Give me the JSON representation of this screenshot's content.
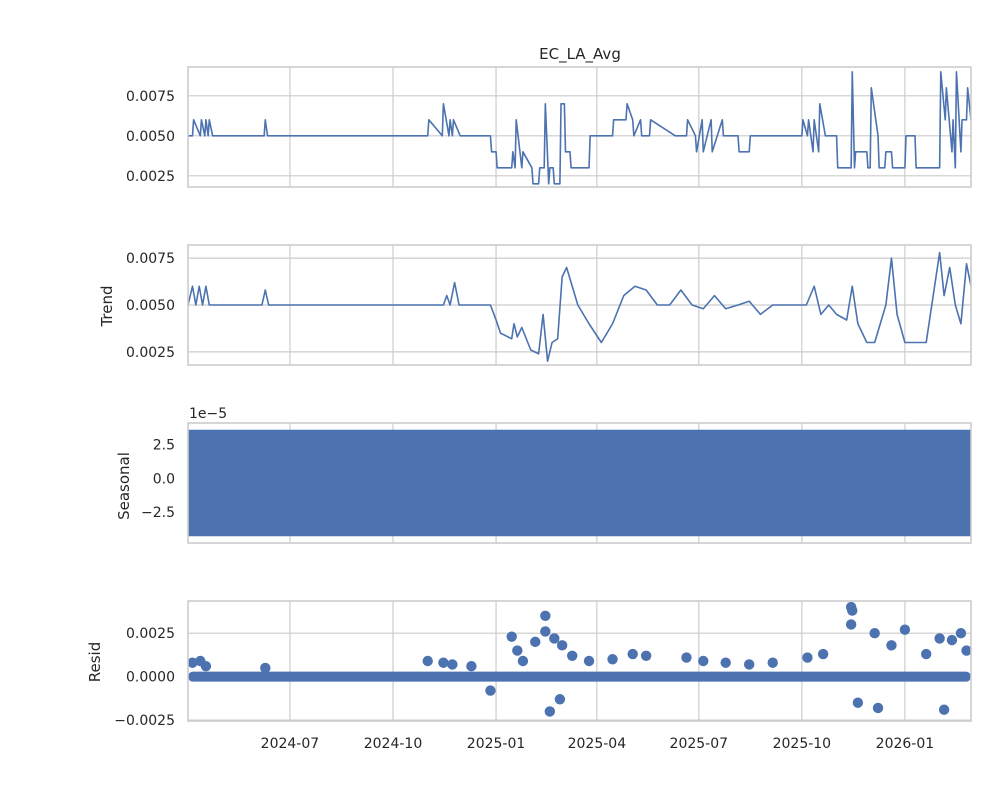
{
  "chart_data": [
    {
      "type": "line",
      "panel": "observed",
      "title": "EC_LA_Avg",
      "ylabel": "",
      "ylim": [
        0.0018,
        0.0093
      ],
      "yticks": [
        0.0025,
        0.005,
        0.0075
      ],
      "ytick_labels": [
        "0.0025",
        "0.0050",
        "0.0075"
      ],
      "xlim": [
        "2024-04-01",
        "2026-03-01"
      ],
      "grid": true,
      "color": "#4c72b0",
      "series": [
        {
          "x": [
            "2024-04-01",
            "2024-04-05",
            "2024-04-06",
            "2024-04-12",
            "2024-04-13",
            "2024-04-16",
            "2024-04-17",
            "2024-04-19",
            "2024-04-20",
            "2024-04-23",
            "2024-04-24",
            "2024-06-08",
            "2024-06-09",
            "2024-06-11",
            "2024-06-12",
            "2024-11-01",
            "2024-11-02",
            "2024-11-14",
            "2024-11-15",
            "2024-11-20",
            "2024-11-21",
            "2024-11-23",
            "2024-11-24",
            "2024-11-30",
            "2024-12-01",
            "2024-12-27",
            "2024-12-28",
            "2025-01-01",
            "2025-01-02",
            "2025-01-15",
            "2025-01-16",
            "2025-01-18",
            "2025-01-19",
            "2025-01-24",
            "2025-01-25",
            "2025-02-02",
            "2025-02-03",
            "2025-02-08",
            "2025-02-09",
            "2025-02-13",
            "2025-02-14",
            "2025-02-17",
            "2025-02-18",
            "2025-02-21",
            "2025-02-22",
            "2025-02-27",
            "2025-02-28",
            "2025-03-03",
            "2025-03-04",
            "2025-03-08",
            "2025-03-09",
            "2025-03-13",
            "2025-03-14",
            "2025-03-25",
            "2025-03-26",
            "2025-04-15",
            "2025-04-16",
            "2025-04-27",
            "2025-04-28",
            "2025-05-03",
            "2025-05-04",
            "2025-05-10",
            "2025-05-11",
            "2025-05-18",
            "2025-05-19",
            "2025-06-10",
            "2025-06-11",
            "2025-06-20",
            "2025-06-21",
            "2025-06-28",
            "2025-06-29",
            "2025-07-04",
            "2025-07-05",
            "2025-07-12",
            "2025-07-13",
            "2025-07-22",
            "2025-07-23",
            "2025-08-05",
            "2025-08-06",
            "2025-08-15",
            "2025-08-16",
            "2025-08-23",
            "2025-08-24",
            "2025-09-01",
            "2025-09-02",
            "2025-10-01",
            "2025-10-02",
            "2025-10-06",
            "2025-10-07",
            "2025-10-11",
            "2025-10-12",
            "2025-10-16",
            "2025-10-17",
            "2025-10-22",
            "2025-10-23",
            "2025-11-01",
            "2025-11-02",
            "2025-11-14",
            "2025-11-15",
            "2025-11-17",
            "2025-11-18",
            "2025-11-28",
            "2025-11-29",
            "2025-12-01",
            "2025-12-02",
            "2025-12-08",
            "2025-12-09",
            "2025-12-14",
            "2025-12-15",
            "2025-12-20",
            "2025-12-21",
            "2026-01-01",
            "2026-01-02",
            "2026-01-10",
            "2026-01-11",
            "2026-01-20",
            "2026-01-21",
            "2026-02-01",
            "2026-02-02",
            "2026-02-06",
            "2026-02-07",
            "2026-02-12",
            "2026-02-13",
            "2026-02-15",
            "2026-02-16",
            "2026-02-20",
            "2026-02-21",
            "2026-02-25",
            "2026-02-26",
            "2026-03-01"
          ],
          "y": [
            0.005,
            0.005,
            0.006,
            0.005,
            0.006,
            0.005,
            0.006,
            0.005,
            0.006,
            0.005,
            0.005,
            0.005,
            0.006,
            0.005,
            0.005,
            0.005,
            0.006,
            0.005,
            0.007,
            0.005,
            0.006,
            0.005,
            0.006,
            0.005,
            0.005,
            0.005,
            0.004,
            0.004,
            0.003,
            0.003,
            0.004,
            0.003,
            0.006,
            0.003,
            0.004,
            0.003,
            0.002,
            0.002,
            0.003,
            0.003,
            0.007,
            0.002,
            0.003,
            0.003,
            0.002,
            0.002,
            0.007,
            0.007,
            0.004,
            0.004,
            0.003,
            0.003,
            0.003,
            0.003,
            0.005,
            0.005,
            0.006,
            0.006,
            0.007,
            0.006,
            0.005,
            0.006,
            0.005,
            0.005,
            0.006,
            0.005,
            0.005,
            0.005,
            0.006,
            0.005,
            0.004,
            0.006,
            0.004,
            0.006,
            0.004,
            0.006,
            0.005,
            0.005,
            0.004,
            0.004,
            0.005,
            0.005,
            0.005,
            0.005,
            0.005,
            0.005,
            0.006,
            0.005,
            0.006,
            0.004,
            0.006,
            0.004,
            0.007,
            0.005,
            0.005,
            0.005,
            0.003,
            0.003,
            0.009,
            0.003,
            0.004,
            0.004,
            0.003,
            0.003,
            0.008,
            0.005,
            0.003,
            0.003,
            0.004,
            0.004,
            0.003,
            0.003,
            0.005,
            0.005,
            0.003,
            0.003,
            0.003,
            0.003,
            0.009,
            0.006,
            0.008,
            0.004,
            0.006,
            0.003,
            0.009,
            0.004,
            0.006,
            0.006,
            0.008,
            0.006
          ]
        }
      ]
    },
    {
      "type": "line",
      "panel": "trend",
      "title": "",
      "ylabel": "Trend",
      "ylim": [
        0.0018,
        0.0082
      ],
      "yticks": [
        0.0025,
        0.005,
        0.0075
      ],
      "ytick_labels": [
        "0.0025",
        "0.0050",
        "0.0075"
      ],
      "xlim": [
        "2024-04-01",
        "2026-03-01"
      ],
      "grid": true,
      "color": "#4c72b0",
      "series": [
        {
          "x": [
            "2024-04-01",
            "2024-04-05",
            "2024-04-08",
            "2024-04-11",
            "2024-04-14",
            "2024-04-17",
            "2024-04-20",
            "2024-04-24",
            "2024-06-06",
            "2024-06-09",
            "2024-06-12",
            "2024-11-01",
            "2024-11-15",
            "2024-11-18",
            "2024-11-21",
            "2024-11-25",
            "2024-11-29",
            "2024-12-27",
            "2025-01-01",
            "2025-01-05",
            "2025-01-15",
            "2025-01-17",
            "2025-01-20",
            "2025-01-24",
            "2025-02-01",
            "2025-02-08",
            "2025-02-12",
            "2025-02-16",
            "2025-02-20",
            "2025-02-25",
            "2025-03-01",
            "2025-03-05",
            "2025-03-10",
            "2025-03-15",
            "2025-03-25",
            "2025-04-05",
            "2025-04-15",
            "2025-04-25",
            "2025-05-05",
            "2025-05-15",
            "2025-05-25",
            "2025-06-05",
            "2025-06-15",
            "2025-06-25",
            "2025-07-05",
            "2025-07-15",
            "2025-07-25",
            "2025-08-05",
            "2025-08-15",
            "2025-08-25",
            "2025-09-05",
            "2025-09-20",
            "2025-10-05",
            "2025-10-12",
            "2025-10-18",
            "2025-10-25",
            "2025-11-01",
            "2025-11-10",
            "2025-11-15",
            "2025-11-20",
            "2025-11-28",
            "2025-12-05",
            "2025-12-15",
            "2025-12-20",
            "2025-12-25",
            "2026-01-01",
            "2026-01-10",
            "2026-01-20",
            "2026-02-01",
            "2026-02-05",
            "2026-02-10",
            "2026-02-15",
            "2026-02-20",
            "2026-02-25",
            "2026-03-01"
          ],
          "y": [
            0.005,
            0.006,
            0.005,
            0.006,
            0.005,
            0.006,
            0.005,
            0.005,
            0.005,
            0.0058,
            0.005,
            0.005,
            0.005,
            0.0055,
            0.005,
            0.0062,
            0.005,
            0.005,
            0.0042,
            0.0035,
            0.0032,
            0.004,
            0.0033,
            0.0038,
            0.0026,
            0.0024,
            0.0045,
            0.002,
            0.003,
            0.0032,
            0.0065,
            0.007,
            0.006,
            0.005,
            0.004,
            0.003,
            0.004,
            0.0055,
            0.006,
            0.0058,
            0.005,
            0.005,
            0.0058,
            0.005,
            0.0048,
            0.0055,
            0.0048,
            0.005,
            0.0052,
            0.0045,
            0.005,
            0.005,
            0.005,
            0.006,
            0.0045,
            0.005,
            0.0045,
            0.0042,
            0.006,
            0.004,
            0.003,
            0.003,
            0.005,
            0.0075,
            0.0045,
            0.003,
            0.003,
            0.003,
            0.0078,
            0.0055,
            0.007,
            0.005,
            0.004,
            0.0072,
            0.006
          ]
        }
      ]
    },
    {
      "type": "area",
      "panel": "seasonal",
      "title": "",
      "ylabel": "Seasonal",
      "offset_text": "1e−5",
      "ylim": [
        -4.8,
        4.1
      ],
      "yticks": [
        -2.5,
        0.0,
        2.5
      ],
      "ytick_labels": [
        "−2.5",
        "0.0",
        "2.5"
      ],
      "band": [
        -4.3,
        3.6
      ],
      "xlim": [
        "2024-04-01",
        "2026-03-01"
      ],
      "grid": true,
      "color": "#4c72b0"
    },
    {
      "type": "scatter",
      "panel": "resid",
      "title": "",
      "ylabel": "Resid",
      "ylim": [
        -0.00255,
        0.00435
      ],
      "yticks": [
        -0.0025,
        0.0,
        0.0025
      ],
      "ytick_labels": [
        "−0.0025",
        "0.0000",
        "0.0025"
      ],
      "xlim": [
        "2024-04-01",
        "2026-03-01"
      ],
      "xticks": [
        "2024-07-01",
        "2024-10-01",
        "2025-01-01",
        "2025-04-01",
        "2025-07-01",
        "2025-10-01",
        "2026-01-01"
      ],
      "xtick_labels": [
        "2024-07",
        "2024-10",
        "2025-01",
        "2025-04",
        "2025-07",
        "2025-10",
        "2026-01"
      ],
      "grid": true,
      "color": "#4c72b0",
      "series": [
        {
          "x": [
            "2024-04-05",
            "2024-04-12",
            "2024-04-17",
            "2024-06-09",
            "2024-11-01",
            "2024-11-15",
            "2024-11-23",
            "2024-12-10",
            "2024-12-27",
            "2025-01-15",
            "2025-01-20",
            "2025-01-25",
            "2025-02-05",
            "2025-02-14",
            "2025-02-14",
            "2025-02-18",
            "2025-02-22",
            "2025-02-27",
            "2025-03-01",
            "2025-03-10",
            "2025-03-25",
            "2025-04-15",
            "2025-05-03",
            "2025-05-15",
            "2025-06-20",
            "2025-07-05",
            "2025-07-25",
            "2025-08-15",
            "2025-09-05",
            "2025-10-06",
            "2025-10-20",
            "2025-11-14",
            "2025-11-14",
            "2025-11-15",
            "2025-11-20",
            "2025-12-05",
            "2025-12-08",
            "2025-12-20",
            "2026-01-01",
            "2026-01-20",
            "2026-02-01",
            "2026-02-05",
            "2026-02-12",
            "2026-02-20",
            "2026-02-25"
          ],
          "y": [
            0.0008,
            0.0009,
            0.0006,
            0.0005,
            0.0009,
            0.0008,
            0.0007,
            0.0006,
            -0.0008,
            0.0023,
            0.0015,
            0.0009,
            0.002,
            0.0035,
            0.0026,
            -0.002,
            0.0022,
            -0.0013,
            0.0018,
            0.0012,
            0.0009,
            0.001,
            0.0013,
            0.0012,
            0.0011,
            0.0009,
            0.0008,
            0.0007,
            0.0008,
            0.0011,
            0.0013,
            0.004,
            0.003,
            0.0038,
            -0.0015,
            0.0025,
            -0.0018,
            0.0018,
            0.0027,
            0.0013,
            0.0022,
            -0.0019,
            0.0021,
            0.0025,
            0.0015
          ]
        }
      ]
    }
  ]
}
